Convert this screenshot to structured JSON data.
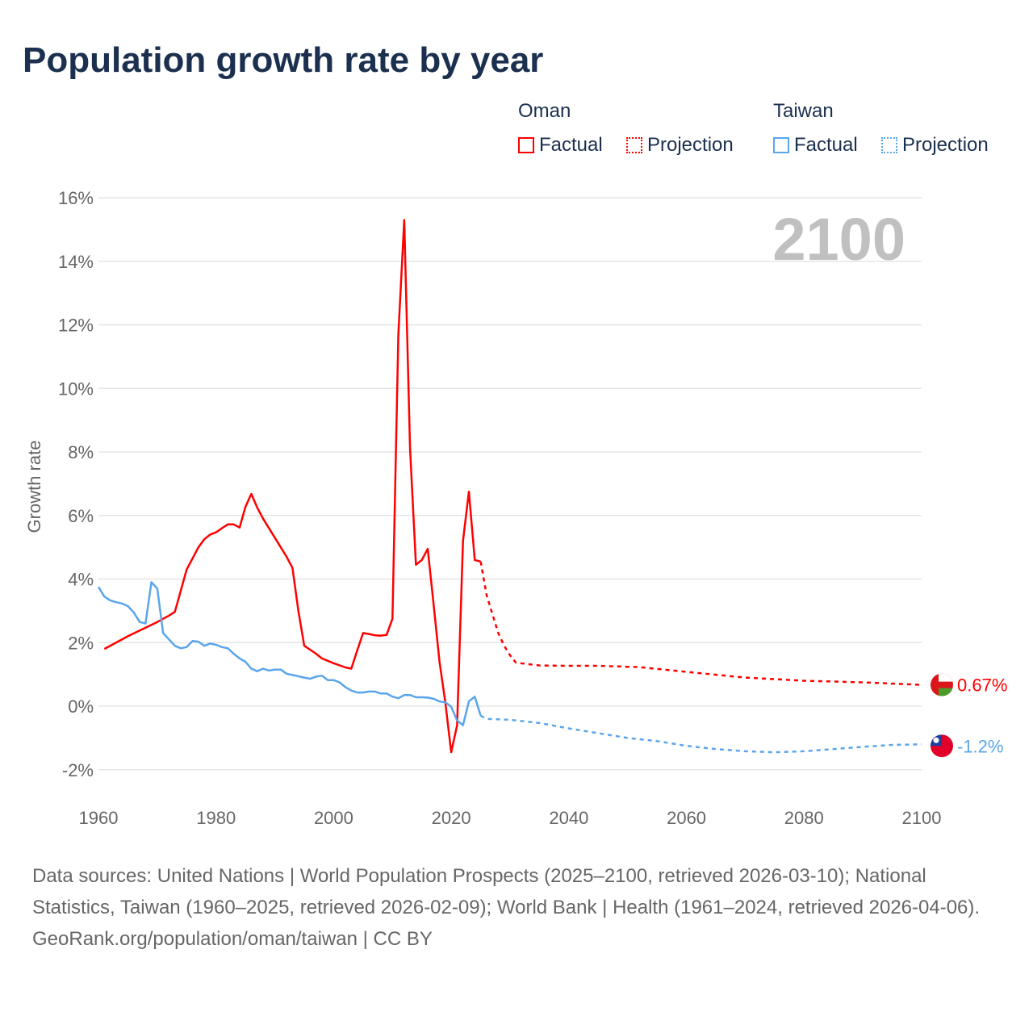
{
  "title": "Population growth rate by year",
  "legend": {
    "groups": [
      {
        "name": "Oman",
        "color": "#ff0000",
        "factual": "Factual",
        "projection": "Projection"
      },
      {
        "name": "Taiwan",
        "color": "#5aa5ec",
        "factual": "Factual",
        "projection": "Projection"
      }
    ]
  },
  "footer": {
    "sources": "Data sources: United Nations | World Population Prospects (2025–2100, retrieved 2026-03-10); National Statistics, Taiwan (1960–2025, retrieved 2026-02-09); World Bank | Health (1961–2024, retrieved 2026-04-06).",
    "credit": "GeoRank.org/population/oman/taiwan | CC BY"
  },
  "chart_data": {
    "type": "line",
    "title": "Population growth rate by year",
    "xlabel": "",
    "ylabel": "Growth rate",
    "xlim": [
      1960,
      2100
    ],
    "ylim": [
      -3,
      16
    ],
    "yticks": [
      16,
      14,
      12,
      10,
      8,
      6,
      4,
      2,
      0,
      -2
    ],
    "ytick_labels": [
      "16%",
      "14%",
      "12%",
      "10%",
      "8%",
      "6%",
      "4%",
      "2%",
      "0%",
      "-2%"
    ],
    "xticks": [
      1960,
      1980,
      2000,
      2020,
      2040,
      2060,
      2080,
      2100
    ],
    "xtick_labels": [
      "1960",
      "1980",
      "2000",
      "2020",
      "2040",
      "2060",
      "2080",
      "2100"
    ],
    "year_watermark": "2100",
    "grid": true,
    "legend_position": "top-right",
    "series": [
      {
        "name": "Oman Factual",
        "color": "#ff0000",
        "style": "solid",
        "x": [
          1961,
          1965,
          1970,
          1972,
          1973,
          1975,
          1976,
          1977,
          1978,
          1979,
          1980,
          1981,
          1982,
          1983,
          1984,
          1985,
          1986,
          1987,
          1988,
          1990,
          1992,
          1993,
          1994,
          1995,
          1997,
          1998,
          2000,
          2002,
          2003,
          2004,
          2005,
          2006,
          2007,
          2008,
          2009,
          2010,
          2011,
          2012,
          2013,
          2014,
          2015,
          2016,
          2017,
          2018,
          2019,
          2020,
          2021,
          2022,
          2023,
          2024,
          2025
        ],
        "y": [
          1.8,
          2.2,
          2.65,
          2.85,
          2.97,
          4.3,
          4.65,
          5.0,
          5.25,
          5.4,
          5.47,
          5.6,
          5.72,
          5.72,
          5.62,
          6.27,
          6.68,
          6.25,
          5.9,
          5.3,
          4.7,
          4.35,
          3.0,
          1.9,
          1.65,
          1.5,
          1.35,
          1.22,
          1.18,
          1.75,
          2.3,
          2.27,
          2.23,
          2.22,
          2.24,
          2.75,
          11.7,
          15.3,
          8.1,
          4.45,
          4.6,
          4.95,
          3.2,
          1.4,
          0.1,
          -1.45,
          -0.6,
          5.2,
          6.75,
          4.6,
          4.55
        ]
      },
      {
        "name": "Oman Projection",
        "color": "#ff0000",
        "style": "dotted",
        "x": [
          2025,
          2026,
          2027,
          2028,
          2029,
          2030,
          2031,
          2035,
          2040,
          2045,
          2050,
          2052,
          2060,
          2070,
          2080,
          2090,
          2100
        ],
        "y": [
          4.55,
          3.5,
          2.9,
          2.3,
          1.9,
          1.6,
          1.37,
          1.28,
          1.27,
          1.27,
          1.24,
          1.23,
          1.08,
          0.9,
          0.8,
          0.75,
          0.67
        ]
      },
      {
        "name": "Taiwan Factual",
        "color": "#5aa5ec",
        "style": "solid",
        "x": [
          1960,
          1961,
          1962,
          1963,
          1964,
          1965,
          1966,
          1967,
          1968,
          1969,
          1970,
          1971,
          1972,
          1973,
          1974,
          1975,
          1976,
          1977,
          1978,
          1979,
          1980,
          1981,
          1982,
          1983,
          1984,
          1985,
          1986,
          1987,
          1988,
          1989,
          1990,
          1991,
          1992,
          1993,
          1994,
          1995,
          1996,
          1997,
          1998,
          1999,
          2000,
          2001,
          2002,
          2003,
          2004,
          2005,
          2006,
          2007,
          2008,
          2009,
          2010,
          2011,
          2012,
          2013,
          2014,
          2015,
          2016,
          2017,
          2018,
          2019,
          2020,
          2021,
          2022,
          2023,
          2024,
          2025
        ],
        "y": [
          3.75,
          3.45,
          3.33,
          3.27,
          3.23,
          3.15,
          2.95,
          2.65,
          2.6,
          3.9,
          3.7,
          2.3,
          2.1,
          1.9,
          1.82,
          1.86,
          2.05,
          2.03,
          1.9,
          1.97,
          1.93,
          1.86,
          1.82,
          1.65,
          1.5,
          1.4,
          1.18,
          1.1,
          1.18,
          1.12,
          1.15,
          1.15,
          1.02,
          0.98,
          0.94,
          0.9,
          0.86,
          0.93,
          0.96,
          0.82,
          0.82,
          0.75,
          0.6,
          0.49,
          0.43,
          0.43,
          0.46,
          0.46,
          0.4,
          0.4,
          0.3,
          0.25,
          0.35,
          0.35,
          0.28,
          0.28,
          0.27,
          0.23,
          0.15,
          0.12,
          -0.02,
          -0.45,
          -0.6,
          0.15,
          0.3,
          -0.3
        ]
      },
      {
        "name": "Taiwan Projection",
        "color": "#5aa5ec",
        "style": "dotted",
        "x": [
          2025,
          2026,
          2030,
          2035,
          2040,
          2045,
          2050,
          2055,
          2060,
          2065,
          2070,
          2075,
          2080,
          2085,
          2090,
          2095,
          2100
        ],
        "y": [
          -0.3,
          -0.4,
          -0.43,
          -0.53,
          -0.7,
          -0.85,
          -1.0,
          -1.1,
          -1.25,
          -1.35,
          -1.42,
          -1.45,
          -1.42,
          -1.35,
          -1.28,
          -1.22,
          -1.2
        ]
      }
    ],
    "end_labels": [
      {
        "series": "Oman",
        "value": 0.67,
        "label": "0.67%",
        "color": "#ff0000",
        "flag": "oman-flag"
      },
      {
        "series": "Taiwan",
        "value": -1.2,
        "label": "-1.2%",
        "color": "#5aa5ec",
        "flag": "taiwan-flag"
      }
    ]
  }
}
